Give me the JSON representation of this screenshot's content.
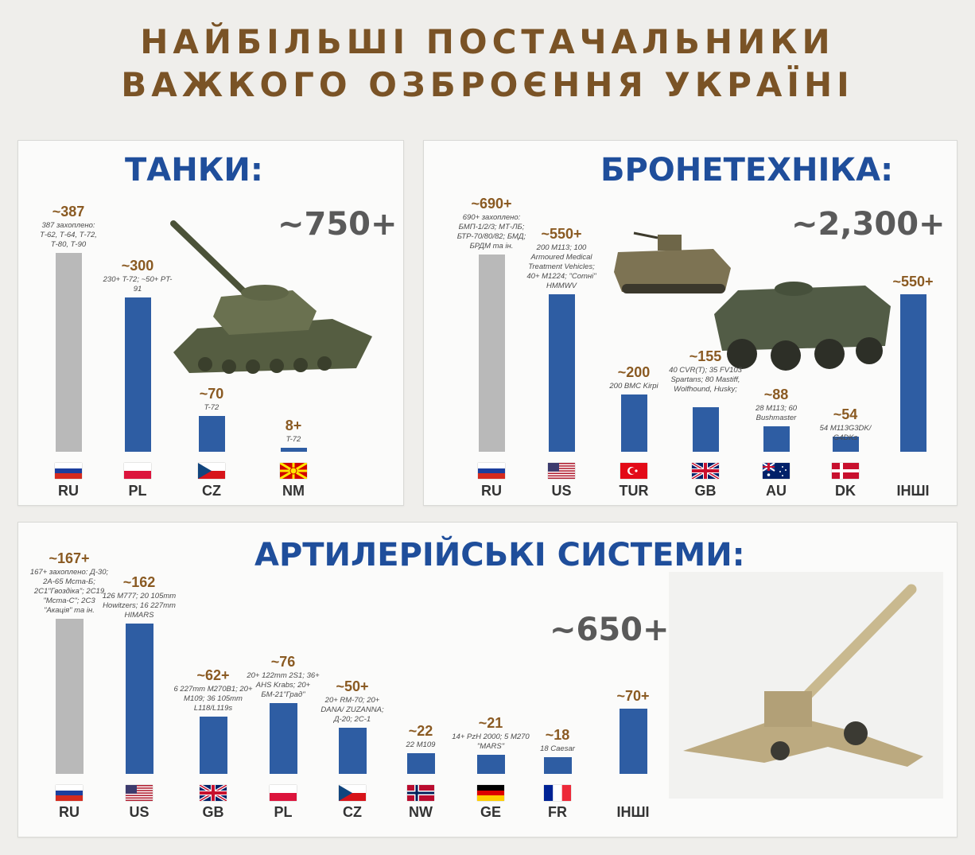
{
  "title": {
    "line1": "НАЙБІЛЬШІ ПОСТАЧАЛЬНИКИ",
    "line2": "ВАЖКОГО ОЗБРОЄННЯ УКРАЇНІ"
  },
  "colors": {
    "title": "#7a5326",
    "panel_title": "#1f4e9b",
    "bar": "#2e5da3",
    "bar_captured": "#b9b9b9",
    "value_text": "#8a5a22"
  },
  "chart_data": [
    {
      "type": "bar",
      "title": "ТАНКИ:",
      "total": "~750+",
      "categories": [
        "RU",
        "PL",
        "CZ",
        "NM"
      ],
      "values": [
        387,
        300,
        70,
        8
      ],
      "value_labels": [
        "~387",
        "~300",
        "~70",
        "8+"
      ],
      "notes": [
        "387 захоплено: Т-62, Т-64, Т-72, Т-80, Т-90",
        "230+ T-72; ~50+ PT-91",
        "T-72",
        "T-72"
      ],
      "captured_category": "RU",
      "flags": [
        "ru-flag-icon",
        "pl-flag-icon",
        "cz-flag-icon",
        "mk-flag-icon"
      ],
      "image": "tank-image"
    },
    {
      "type": "bar",
      "title": "БРОНЕТЕХНІКА:",
      "total": "~2,300+",
      "categories": [
        "RU",
        "US",
        "TUR",
        "GB",
        "AU",
        "DK",
        "ІНШІ"
      ],
      "values": [
        690,
        550,
        200,
        155,
        88,
        54,
        550
      ],
      "value_labels": [
        "~690+",
        "~550+",
        "~200",
        "~155",
        "~88",
        "~54",
        "~550+"
      ],
      "notes": [
        "690+ захоплено: БМП-1/2/3; МТ-ЛБ; БТР-70/80/82; БМД; БРДМ та ін.",
        "200 M113; 100 Armoured Medical Treatment Vehicles; 40+ M1224; \"Сотні\" HMMWV",
        "200 BMC Kirpi",
        "40 CVR(T); 35 FV103 Spartans; 80 Mastiff, Wolfhound, Husky;",
        "28 M113; 60 Bushmaster",
        "54 M113G3DK/ G4DKs",
        ""
      ],
      "captured_category": "RU",
      "flags": [
        "ru-flag-icon",
        "us-flag-icon",
        "tr-flag-icon",
        "gb-flag-icon",
        "au-flag-icon",
        "dk-flag-icon",
        ""
      ],
      "images": [
        "m113-image",
        "btr-image"
      ]
    },
    {
      "type": "bar",
      "title": "АРТИЛЕРІЙСЬКІ СИСТЕМИ:",
      "total": "~650+",
      "categories": [
        "RU",
        "US",
        "GB",
        "PL",
        "CZ",
        "NW",
        "GE",
        "FR",
        "ІНШІ"
      ],
      "values": [
        167,
        162,
        62,
        76,
        50,
        22,
        21,
        18,
        70
      ],
      "value_labels": [
        "~167+",
        "~162",
        "~62+",
        "~76",
        "~50+",
        "~22",
        "~21",
        "~18",
        "~70+"
      ],
      "notes": [
        "167+ захоплено: Д-30; 2А-65 Мста-Б; 2С1\"Гвоздіка\"; 2С19 \"Мста-С\"; 2С3 \"Акація\" та ін.",
        "126 M777; 20 105mm Howitzers; 16 227mm HIMARS",
        "6 227mm M270B1; 20+ M109; 36 105mm L118/L119s",
        "20+ 122mm 2S1; 36+ AHS Krabs; 20+ БМ-21\"Град\"",
        "20+ RM-70; 20+ DANA/ ZUZANNA; Д-20; 2С-1",
        "22 M109",
        "14+ PzH 2000; 5 M270 \"MARS\"",
        "18 Caesar",
        ""
      ],
      "captured_category": "RU",
      "flags": [
        "ru-flag-icon",
        "us-flag-icon",
        "gb-flag-icon",
        "pl-flag-icon",
        "cz-flag-icon",
        "no-flag-icon",
        "de-flag-icon",
        "fr-flag-icon",
        ""
      ],
      "image": "howitzer-image"
    }
  ]
}
